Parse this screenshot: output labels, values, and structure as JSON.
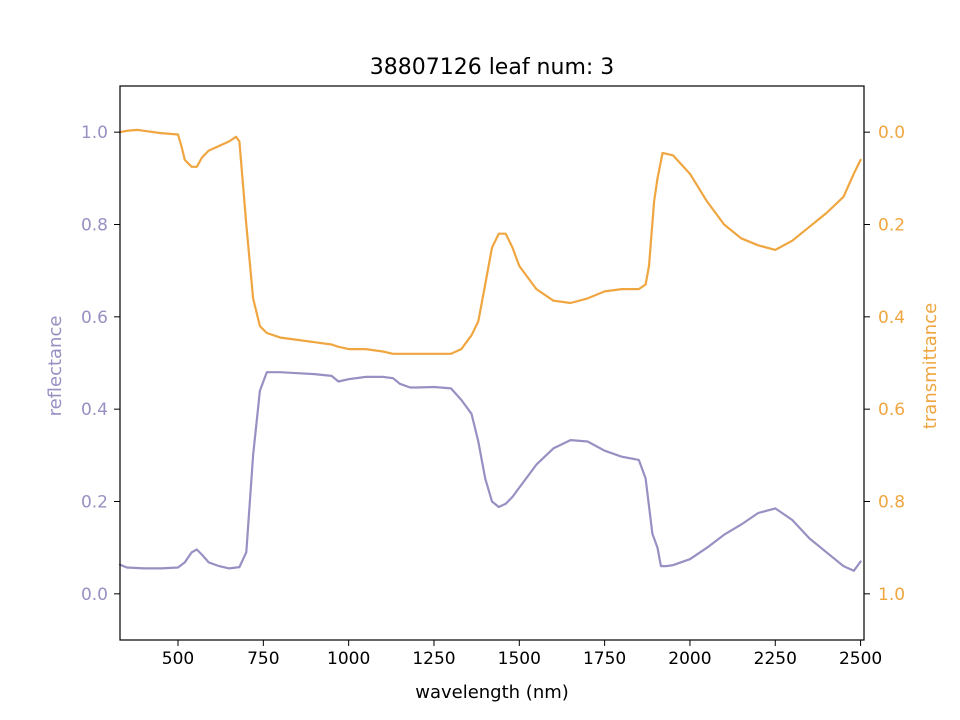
{
  "chart_data": {
    "type": "line",
    "title": "38807126 leaf num: 3",
    "xlabel": "wavelength (nm)",
    "ylabel_left": "reflectance",
    "ylabel_right": "transmittance",
    "xlim": [
      330,
      2510
    ],
    "ylim_left": [
      -0.1,
      1.1
    ],
    "ylim_right": [
      1.1,
      -0.1
    ],
    "right_axis_inverted": true,
    "grid": false,
    "x_ticks": [
      500,
      750,
      1000,
      1250,
      1500,
      1750,
      2000,
      2250,
      2500
    ],
    "y_left_ticks": [
      0.0,
      0.2,
      0.4,
      0.6,
      0.8,
      1.0
    ],
    "y_right_ticks": [
      0.0,
      0.2,
      0.4,
      0.6,
      0.8,
      1.0
    ],
    "x_tick_labels": [
      "500",
      "750",
      "1000",
      "1250",
      "1500",
      "1750",
      "2000",
      "2250",
      "2500"
    ],
    "y_left_tick_labels": [
      "0.0",
      "0.2",
      "0.4",
      "0.6",
      "0.8",
      "1.0"
    ],
    "y_right_tick_labels": [
      "0.0",
      "0.2",
      "0.4",
      "0.6",
      "0.8",
      "1.0"
    ],
    "series": [
      {
        "key": "reflectance",
        "axis": "left",
        "color": "#9890c2",
        "x": [
          330,
          350,
          400,
          450,
          500,
          520,
          540,
          555,
          570,
          590,
          620,
          650,
          680,
          700,
          720,
          740,
          760,
          800,
          850,
          900,
          950,
          970,
          1000,
          1050,
          1100,
          1130,
          1150,
          1180,
          1200,
          1250,
          1300,
          1330,
          1360,
          1380,
          1400,
          1420,
          1440,
          1460,
          1480,
          1500,
          1550,
          1600,
          1650,
          1700,
          1750,
          1800,
          1850,
          1870,
          1890,
          1905,
          1915,
          1930,
          1950,
          2000,
          2050,
          2100,
          2150,
          2200,
          2250,
          2300,
          2350,
          2400,
          2450,
          2480,
          2500
        ],
        "y": [
          0.063,
          0.057,
          0.055,
          0.055,
          0.057,
          0.068,
          0.09,
          0.096,
          0.085,
          0.068,
          0.06,
          0.055,
          0.058,
          0.09,
          0.3,
          0.44,
          0.48,
          0.48,
          0.478,
          0.476,
          0.472,
          0.46,
          0.465,
          0.47,
          0.47,
          0.467,
          0.455,
          0.447,
          0.447,
          0.448,
          0.445,
          0.42,
          0.39,
          0.33,
          0.25,
          0.2,
          0.188,
          0.195,
          0.21,
          0.23,
          0.28,
          0.315,
          0.333,
          0.33,
          0.31,
          0.297,
          0.29,
          0.25,
          0.13,
          0.1,
          0.06,
          0.06,
          0.062,
          0.075,
          0.1,
          0.128,
          0.15,
          0.175,
          0.185,
          0.16,
          0.12,
          0.09,
          0.06,
          0.05,
          0.07
        ]
      },
      {
        "key": "transmittance",
        "axis": "right",
        "color": "#f0a640",
        "x": [
          330,
          350,
          380,
          400,
          450,
          500,
          510,
          520,
          540,
          555,
          570,
          590,
          620,
          650,
          670,
          680,
          700,
          720,
          740,
          760,
          800,
          850,
          900,
          950,
          970,
          1000,
          1050,
          1100,
          1130,
          1150,
          1180,
          1200,
          1250,
          1300,
          1330,
          1360,
          1380,
          1400,
          1420,
          1440,
          1460,
          1480,
          1500,
          1550,
          1600,
          1650,
          1700,
          1750,
          1800,
          1850,
          1870,
          1880,
          1895,
          1905,
          1920,
          1950,
          2000,
          2050,
          2100,
          2150,
          2200,
          2250,
          2300,
          2350,
          2400,
          2450,
          2480,
          2500
        ],
        "y": [
          0.0,
          -0.003,
          -0.005,
          -0.003,
          0.002,
          0.005,
          0.03,
          0.06,
          0.075,
          0.075,
          0.055,
          0.04,
          0.03,
          0.02,
          0.01,
          0.02,
          0.2,
          0.36,
          0.42,
          0.435,
          0.445,
          0.45,
          0.455,
          0.46,
          0.465,
          0.47,
          0.47,
          0.475,
          0.48,
          0.48,
          0.48,
          0.48,
          0.48,
          0.48,
          0.47,
          0.44,
          0.41,
          0.33,
          0.25,
          0.22,
          0.22,
          0.25,
          0.29,
          0.34,
          0.365,
          0.37,
          0.36,
          0.345,
          0.34,
          0.34,
          0.33,
          0.29,
          0.15,
          0.1,
          0.045,
          0.05,
          0.09,
          0.15,
          0.2,
          0.23,
          0.245,
          0.255,
          0.235,
          0.205,
          0.175,
          0.14,
          0.09,
          0.06
        ]
      }
    ]
  }
}
